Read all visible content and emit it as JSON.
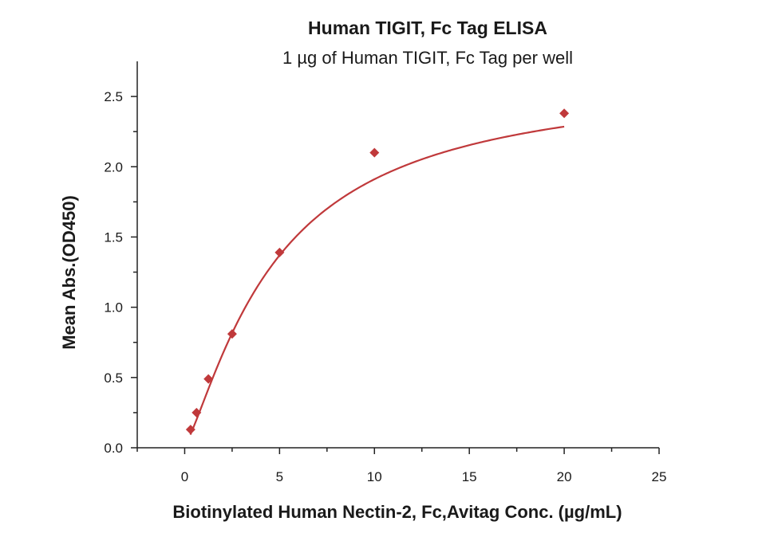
{
  "chart_data": {
    "type": "scatter",
    "title": "Human TIGIT, Fc Tag ELISA",
    "subtitle": "1 µg of Human TIGIT, Fc Tag per well",
    "xlabel": "Biotinylated Human Nectin-2, Fc,Avitag Conc. (µg/mL)",
    "ylabel": "Mean Abs.(OD450)",
    "xlim": [
      -2.5,
      25
    ],
    "ylim": [
      0,
      2.75
    ],
    "x_ticks": [
      0,
      5,
      10,
      15,
      20,
      25
    ],
    "x_tick_labels": [
      "0",
      "5",
      "10",
      "15",
      "20",
      "25"
    ],
    "y_ticks": [
      0,
      0.5,
      1.0,
      1.5,
      2.0,
      2.5
    ],
    "y_tick_labels": [
      "0.0",
      "0.5",
      "1.0",
      "1.5",
      "2.0",
      "2.5"
    ],
    "grid": false,
    "series": [
      {
        "x": [
          0.3125,
          0.625,
          1.25,
          2.5,
          5,
          10,
          20
        ],
        "y": [
          0.13,
          0.25,
          0.49,
          0.81,
          1.39,
          2.1,
          2.38
        ],
        "marker": "diamond",
        "fit": "four-parameter logistic curve",
        "color": "#c0393b"
      }
    ]
  }
}
